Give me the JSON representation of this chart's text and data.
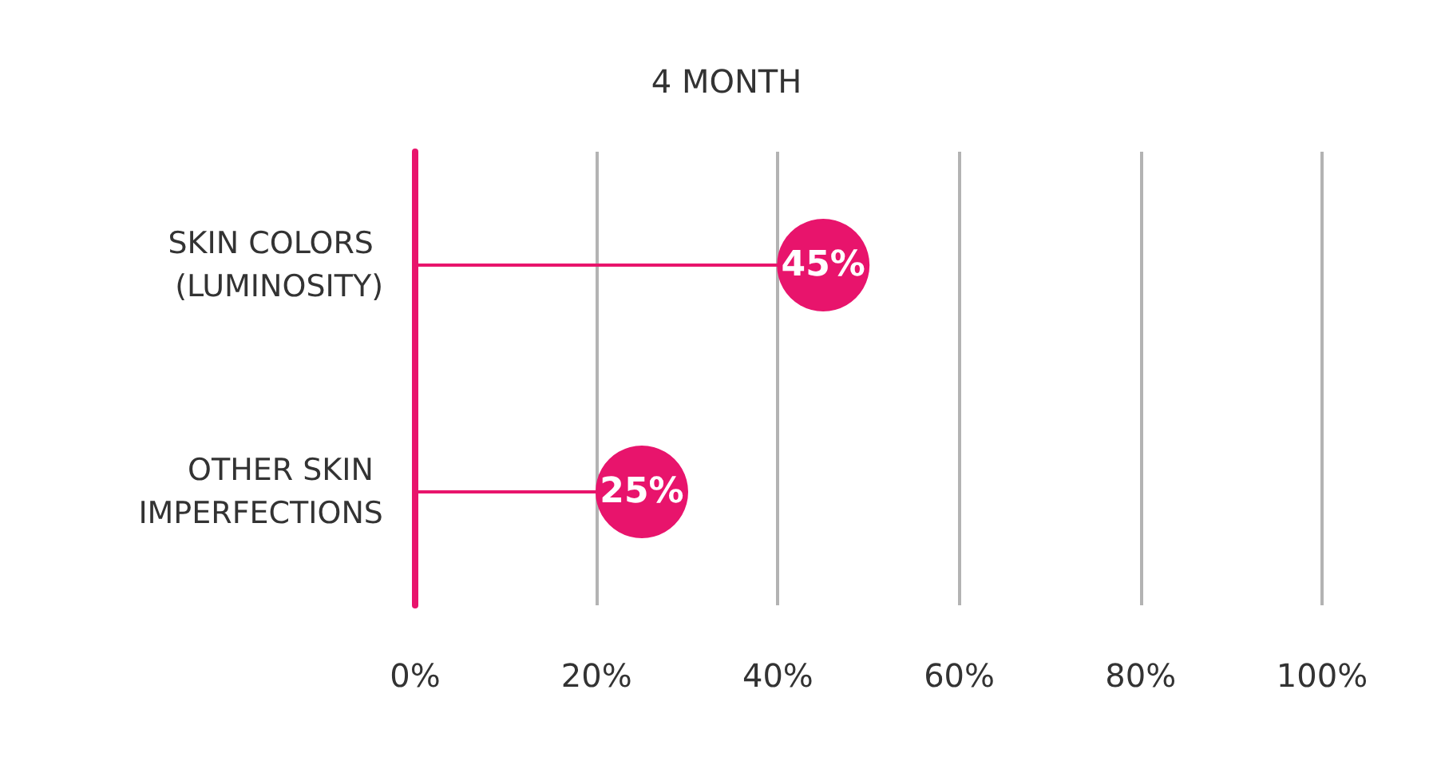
{
  "chart_data": {
    "type": "lollipop",
    "orientation": "horizontal",
    "title": "4 MONTH",
    "categories": [
      "SKIN COLORS (LUMINOSITY)",
      "OTHER SKIN IMPERFECTIONS"
    ],
    "values": [
      45,
      25
    ],
    "value_labels": [
      "45%",
      "25%"
    ],
    "color": "#e8146c",
    "marker": "circle",
    "xlim": [
      0,
      100
    ],
    "xticks": [
      {
        "value": 0,
        "label": "0%"
      },
      {
        "value": 20,
        "label": "20%"
      },
      {
        "value": 40,
        "label": "40%"
      },
      {
        "value": 60,
        "label": "60%"
      },
      {
        "value": 80,
        "label": "80%"
      },
      {
        "value": 100,
        "label": "100%"
      }
    ],
    "grid": "x"
  }
}
